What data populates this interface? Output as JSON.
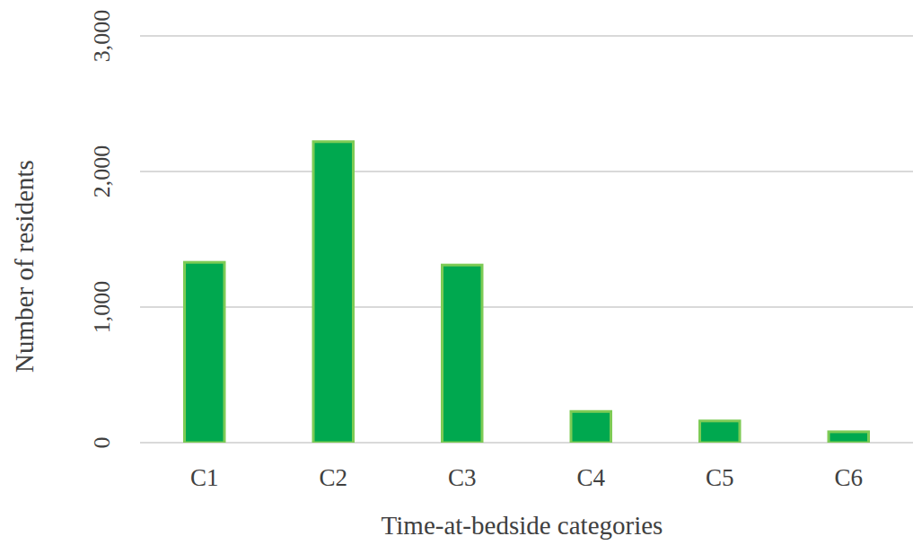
{
  "chart_data": {
    "type": "bar",
    "x_label": "Time-at-bedside categories",
    "y_label": "Number of residents",
    "categories": [
      "C1",
      "C2",
      "C3",
      "C4",
      "C5",
      "C6"
    ],
    "values": [
      1330,
      2220,
      1310,
      230,
      160,
      80
    ],
    "color": "#00a84f",
    "ylim": [
      0,
      3000
    ],
    "yticks": [
      0,
      {
        "value": 1000,
        "label": "1,000"
      },
      {
        "value": 2000,
        "label": "2,000"
      },
      {
        "value": 3000,
        "label": "3,000"
      }
    ],
    "grid": true
  }
}
